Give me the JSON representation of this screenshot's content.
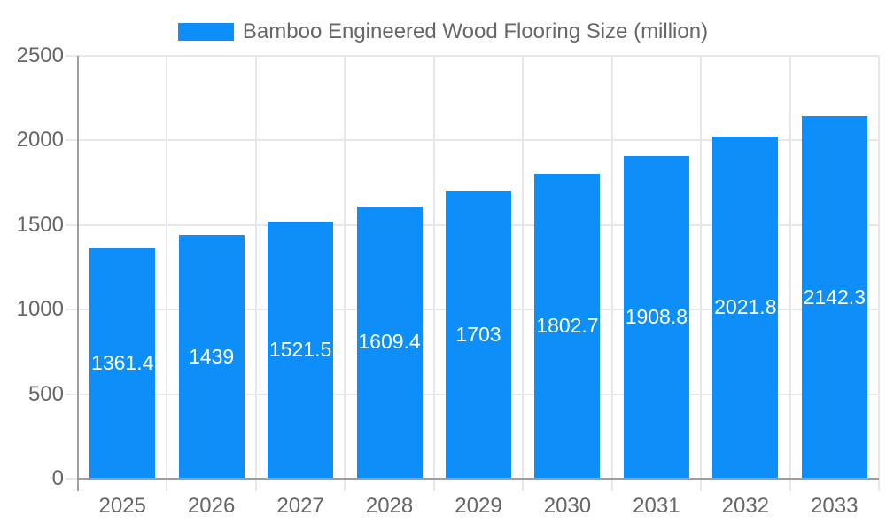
{
  "chart_data": {
    "type": "bar",
    "title": "Bamboo Engineered Wood Flooring Size (million)",
    "legend": [
      "Bamboo Engineered Wood Flooring Size (million)"
    ],
    "legend_position": "top",
    "categories": [
      "2025",
      "2026",
      "2027",
      "2028",
      "2029",
      "2030",
      "2031",
      "2032",
      "2033"
    ],
    "values": [
      1361.4,
      1439,
      1521.5,
      1609.4,
      1703,
      1802.7,
      1908.8,
      2021.8,
      2142.3
    ],
    "value_labels": [
      "1361.4",
      "1439",
      "1521.5",
      "1609.4",
      "1703",
      "1802.7",
      "1908.8",
      "2021.8",
      "2142.3"
    ],
    "xlabel": "",
    "ylabel": "",
    "ylim": [
      0,
      2500
    ],
    "y_ticks": [
      0,
      500,
      1000,
      1500,
      2000,
      2500
    ],
    "grid": true,
    "colors": {
      "bar": "#0d8ef9",
      "grid_light": "#e7e7e7",
      "axis": "#9e9e9e",
      "axis_text": "#666666",
      "value_text": "#ffffff",
      "background": "#ffffff"
    }
  }
}
